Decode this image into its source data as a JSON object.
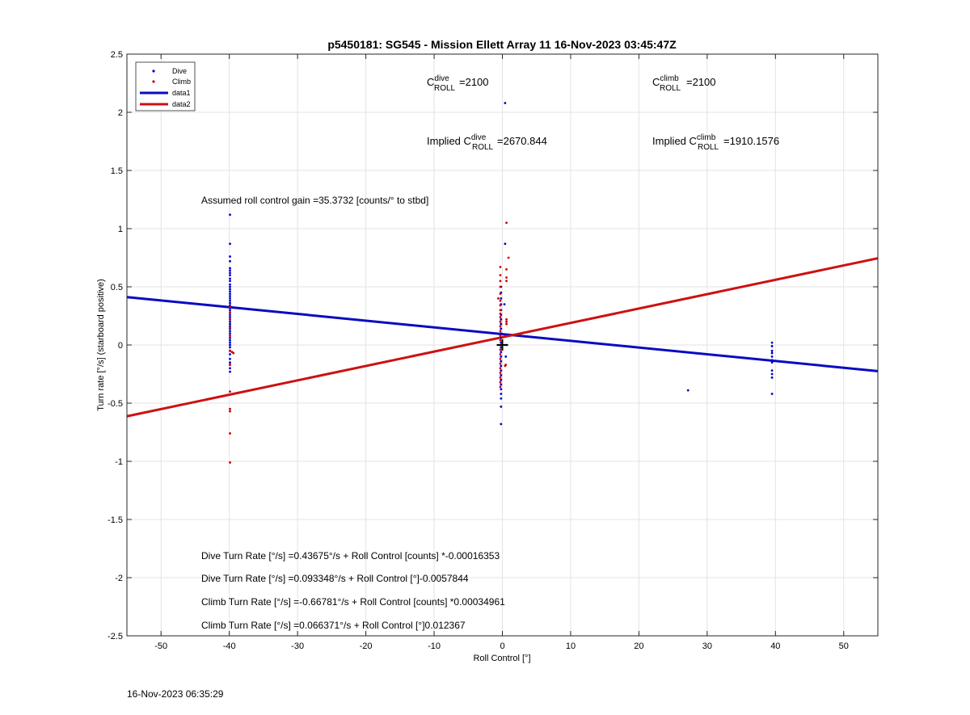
{
  "footer_timestamp": "16-Nov-2023 06:35:29",
  "chart_data": {
    "type": "scatter",
    "title": "p5450181: SG545 - Mission Ellett Array 11 16-Nov-2023 03:45:47Z",
    "xlabel": "Roll Control [°]",
    "ylabel": "Turn rate [°/s] (starboard positive)",
    "xlim": [
      -55,
      55
    ],
    "ylim": [
      -2.5,
      2.5
    ],
    "xticks": [
      -50,
      -40,
      -30,
      -20,
      -10,
      0,
      10,
      20,
      30,
      40,
      50
    ],
    "yticks": [
      -2.5,
      -2,
      -1.5,
      -1,
      -0.5,
      0,
      0.5,
      1,
      1.5,
      2,
      2.5
    ],
    "grid": true,
    "legend_location": "top-left",
    "legend": [
      "Dive",
      "Climb",
      "data1",
      "data2"
    ],
    "colors": {
      "dive": "#0000cc",
      "climb": "#cc0000",
      "data1": "#0a0ac2",
      "data2": "#cc1111",
      "marker": "#000000"
    },
    "series": [
      {
        "name": "Dive",
        "kind": "scatter",
        "points": [
          [
            -39.9,
            1.12
          ],
          [
            -39.9,
            0.87
          ],
          [
            -39.9,
            0.76
          ],
          [
            -39.9,
            0.72
          ],
          [
            -39.9,
            0.66
          ],
          [
            -39.9,
            0.64
          ],
          [
            -39.9,
            0.62
          ],
          [
            -39.9,
            0.6
          ],
          [
            -39.9,
            0.57
          ],
          [
            -39.9,
            0.55
          ],
          [
            -39.9,
            0.52
          ],
          [
            -39.9,
            0.5
          ],
          [
            -39.9,
            0.48
          ],
          [
            -39.9,
            0.46
          ],
          [
            -39.9,
            0.44
          ],
          [
            -39.9,
            0.42
          ],
          [
            -39.9,
            0.4
          ],
          [
            -39.9,
            0.38
          ],
          [
            -39.9,
            0.36
          ],
          [
            -39.9,
            0.34
          ],
          [
            -39.9,
            0.32
          ],
          [
            -39.9,
            0.3
          ],
          [
            -39.9,
            0.28
          ],
          [
            -39.9,
            0.26
          ],
          [
            -39.9,
            0.24
          ],
          [
            -39.9,
            0.22
          ],
          [
            -39.9,
            0.2
          ],
          [
            -39.9,
            0.18
          ],
          [
            -39.9,
            0.16
          ],
          [
            -39.9,
            0.14
          ],
          [
            -39.9,
            0.12
          ],
          [
            -39.9,
            0.1
          ],
          [
            -39.9,
            0.08
          ],
          [
            -39.9,
            0.06
          ],
          [
            -39.9,
            0.04
          ],
          [
            -39.9,
            0.02
          ],
          [
            -39.9,
            0.0
          ],
          [
            -39.9,
            -0.02
          ],
          [
            -39.9,
            -0.05
          ],
          [
            -39.9,
            -0.08
          ],
          [
            -39.9,
            -0.12
          ],
          [
            -39.9,
            -0.15
          ],
          [
            -39.9,
            -0.17
          ],
          [
            -39.9,
            -0.2
          ],
          [
            -39.9,
            -0.23
          ],
          [
            0.4,
            2.08
          ],
          [
            0.4,
            0.87
          ],
          [
            -0.2,
            0.5
          ],
          [
            -0.2,
            0.45
          ],
          [
            -0.2,
            0.4
          ],
          [
            -0.2,
            0.35
          ],
          [
            -0.2,
            0.3
          ],
          [
            -0.2,
            0.26
          ],
          [
            -0.2,
            0.22
          ],
          [
            -0.2,
            0.18
          ],
          [
            -0.2,
            0.14
          ],
          [
            -0.2,
            0.1
          ],
          [
            -0.2,
            0.06
          ],
          [
            -0.2,
            0.02
          ],
          [
            -0.2,
            -0.02
          ],
          [
            -0.2,
            -0.06
          ],
          [
            -0.2,
            -0.1
          ],
          [
            -0.2,
            -0.14
          ],
          [
            -0.2,
            -0.18
          ],
          [
            -0.2,
            -0.22
          ],
          [
            -0.2,
            -0.26
          ],
          [
            -0.2,
            -0.3
          ],
          [
            -0.2,
            -0.34
          ],
          [
            -0.2,
            -0.38
          ],
          [
            -0.2,
            -0.42
          ],
          [
            -0.2,
            -0.46
          ],
          [
            -0.2,
            -0.53
          ],
          [
            -0.2,
            -0.68
          ],
          [
            0.6,
            0.0
          ],
          [
            0.5,
            -0.1
          ],
          [
            0.3,
            0.35
          ],
          [
            27.2,
            -0.39
          ],
          [
            39.5,
            0.02
          ],
          [
            39.5,
            -0.01
          ],
          [
            39.5,
            -0.05
          ],
          [
            39.5,
            -0.07
          ],
          [
            39.5,
            -0.1
          ],
          [
            39.5,
            -0.13
          ],
          [
            39.5,
            -0.15
          ],
          [
            39.5,
            -0.22
          ],
          [
            39.5,
            -0.25
          ],
          [
            39.5,
            -0.28
          ],
          [
            39.5,
            -0.42
          ]
        ]
      },
      {
        "name": "Climb",
        "kind": "scatter",
        "points": [
          [
            -39.9,
            0.33
          ],
          [
            -39.9,
            0.28
          ],
          [
            -39.9,
            0.22
          ],
          [
            -39.9,
            0.15
          ],
          [
            -39.9,
            0.08
          ],
          [
            -39.9,
            -0.05
          ],
          [
            -39.6,
            -0.06
          ],
          [
            -39.4,
            -0.07
          ],
          [
            -39.9,
            -0.17
          ],
          [
            -39.9,
            -0.4
          ],
          [
            -39.9,
            -0.55
          ],
          [
            -39.9,
            -0.57
          ],
          [
            -39.9,
            -0.76
          ],
          [
            -39.9,
            -1.01
          ],
          [
            0.6,
            1.05
          ],
          [
            0.6,
            0.65
          ],
          [
            0.9,
            0.75
          ],
          [
            0.6,
            0.58
          ],
          [
            0.6,
            0.55
          ],
          [
            0.6,
            0.22
          ],
          [
            0.6,
            0.2
          ],
          [
            0.6,
            0.18
          ],
          [
            -0.3,
            0.67
          ],
          [
            -0.3,
            0.6
          ],
          [
            -0.3,
            0.55
          ],
          [
            -0.3,
            0.5
          ],
          [
            -0.3,
            0.44
          ],
          [
            -0.6,
            0.4
          ],
          [
            -0.3,
            0.38
          ],
          [
            -0.3,
            0.34
          ],
          [
            -0.3,
            0.3
          ],
          [
            -0.3,
            0.27
          ],
          [
            -0.3,
            0.24
          ],
          [
            -0.3,
            0.2
          ],
          [
            -0.3,
            0.16
          ],
          [
            -0.3,
            0.12
          ],
          [
            -0.3,
            0.08
          ],
          [
            -0.3,
            0.04
          ],
          [
            -0.3,
            0.0
          ],
          [
            -0.3,
            -0.04
          ],
          [
            -0.3,
            -0.08
          ],
          [
            -0.3,
            -0.12
          ],
          [
            -0.3,
            -0.16
          ],
          [
            -0.3,
            -0.2
          ],
          [
            -0.3,
            -0.24
          ],
          [
            -0.3,
            -0.28
          ],
          [
            -0.3,
            -0.32
          ],
          [
            -0.3,
            -0.36
          ],
          [
            0.5,
            -0.17
          ],
          [
            0.4,
            -0.18
          ]
        ]
      },
      {
        "name": "data1",
        "kind": "line",
        "points": [
          [
            -55,
            0.4116
          ],
          [
            55,
            -0.2247
          ]
        ]
      },
      {
        "name": "data2",
        "kind": "line",
        "points": [
          [
            -55,
            -0.6127
          ],
          [
            55,
            0.7454
          ]
        ]
      }
    ],
    "median_marker": {
      "x": 0,
      "y": 0
    },
    "annotations": {
      "c_dive_prefix": "C",
      "c_dive_sup": "dive",
      "c_dive_sub": "ROLL",
      "c_dive_value": "=2100",
      "c_climb_prefix": "C",
      "c_climb_sup": "climb",
      "c_climb_sub": "ROLL",
      "c_climb_value": "=2100",
      "implied_dive_prefix": "Implied C",
      "implied_dive_sup": "dive",
      "implied_dive_sub": "ROLL",
      "implied_dive_value": "=2670.844",
      "implied_climb_prefix": "Implied C",
      "implied_climb_sup": "climb",
      "implied_climb_sub": "ROLL",
      "implied_climb_value": "=1910.1576",
      "gain": "Assumed roll control gain =35.3732 [counts/° to stbd]",
      "eq1": "Dive Turn Rate [°/s] =0.43675°/s + Roll Control [counts] *-0.00016353",
      "eq2": "Dive Turn Rate [°/s] =0.093348°/s + Roll Control [°]-0.0057844",
      "eq3": "Climb Turn Rate [°/s] =-0.66781°/s + Roll Control [counts] *0.00034961",
      "eq4": "Climb Turn Rate [°/s] =0.066371°/s + Roll Control [°]0.012367"
    }
  }
}
